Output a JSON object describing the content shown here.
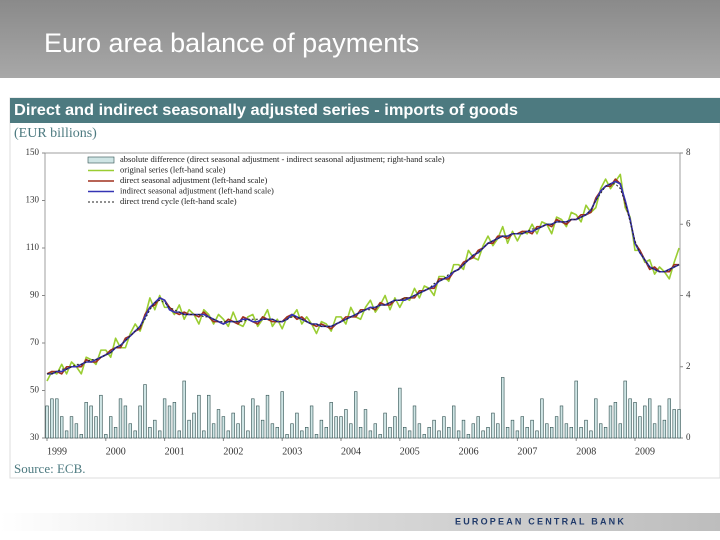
{
  "slide_title": "Euro area balance of payments",
  "footer": "EUROPEAN CENTRAL BANK",
  "chart_data": {
    "type": "line",
    "title": "Direct and indirect seasonally adjusted series - imports of goods",
    "subtitle": "(EUR billions)",
    "source": "Source: ECB.",
    "categories": [
      "1999",
      null,
      null,
      null,
      null,
      null,
      null,
      null,
      null,
      null,
      null,
      null,
      "2000",
      null,
      null,
      null,
      null,
      null,
      null,
      null,
      null,
      null,
      null,
      null,
      "2001",
      null,
      null,
      null,
      null,
      null,
      null,
      null,
      null,
      null,
      null,
      null,
      "2002",
      null,
      null,
      null,
      null,
      null,
      null,
      null,
      null,
      null,
      null,
      null,
      "2003",
      null,
      null,
      null,
      null,
      null,
      null,
      null,
      null,
      null,
      null,
      null,
      "2004",
      null,
      null,
      null,
      null,
      null,
      null,
      null,
      null,
      null,
      null,
      null,
      "2005",
      null,
      null,
      null,
      null,
      null,
      null,
      null,
      null,
      null,
      null,
      null,
      "2006",
      null,
      null,
      null,
      null,
      null,
      null,
      null,
      null,
      null,
      null,
      null,
      "2007",
      null,
      null,
      null,
      null,
      null,
      null,
      null,
      null,
      null,
      null,
      null,
      "2008",
      null,
      null,
      null,
      null,
      null,
      null,
      null,
      null,
      null,
      null,
      null,
      "2009",
      null,
      null,
      null,
      null,
      null,
      null,
      null,
      null,
      null
    ],
    "ylim": [
      30,
      150
    ],
    "yticks": [
      30,
      50,
      70,
      90,
      110,
      130,
      150
    ],
    "y2lim": [
      0,
      8
    ],
    "y2ticks": [
      0,
      2,
      4,
      6,
      8
    ],
    "grid": false,
    "legend": "top-left",
    "series": [
      {
        "name": "absolute difference (direct seasonal adjustment - indirect seasonal adjustment; right-hand scale)",
        "type": "bar",
        "axis": "y2",
        "color": "#cfe5e5",
        "values": [
          0.9,
          1.1,
          1.1,
          0.6,
          0.2,
          0.6,
          0.4,
          0.1,
          1.0,
          0.9,
          0.6,
          1.2,
          0.1,
          0.6,
          0.3,
          1.1,
          0.9,
          0.4,
          0.2,
          0.9,
          1.5,
          0.3,
          0.5,
          0.2,
          1.1,
          0.9,
          1.0,
          0.2,
          1.6,
          0.5,
          0.7,
          1.2,
          0.2,
          1.2,
          0.4,
          0.8,
          0.6,
          0.2,
          0.7,
          0.4,
          0.9,
          0.2,
          1.1,
          0.9,
          0.5,
          1.2,
          0.4,
          0.3,
          1.3,
          0.1,
          0.4,
          0.7,
          0.2,
          0.3,
          0.9,
          0.1,
          0.5,
          0.3,
          1.0,
          0.6,
          0.6,
          0.8,
          0.4,
          1.3,
          0.3,
          0.8,
          0.2,
          0.4,
          0.1,
          0.7,
          0.3,
          0.6,
          1.4,
          0.3,
          0.2,
          0.9,
          0.4,
          0.1,
          0.3,
          0.5,
          0.2,
          0.6,
          0.3,
          0.9,
          0.2,
          0.5,
          0.1,
          0.4,
          0.6,
          0.2,
          0.3,
          0.7,
          0.4,
          1.7,
          0.3,
          0.5,
          0.2,
          0.6,
          0.3,
          0.5,
          0.2,
          1.1,
          0.4,
          0.3,
          0.6,
          0.9,
          0.4,
          0.3,
          1.6,
          0.3,
          0.5,
          0.2,
          1.1,
          0.4,
          0.3,
          0.9,
          1.0,
          0.4,
          1.6,
          1.1,
          1.0,
          0.6,
          0.9,
          1.1,
          0.4,
          0.9,
          0.5,
          1.1,
          0.8,
          0.8
        ]
      },
      {
        "name": "original series (left-hand scale)",
        "color": "#9acd32",
        "values": [
          54,
          58,
          57,
          61,
          57,
          62,
          60,
          57,
          64,
          63,
          61,
          67,
          67,
          64,
          72,
          68,
          68,
          74,
          78,
          75,
          81,
          89,
          84,
          90,
          85,
          85,
          82,
          86,
          80,
          84,
          82,
          78,
          84,
          82,
          78,
          82,
          80,
          77,
          83,
          78,
          77,
          81,
          82,
          77,
          80,
          84,
          77,
          80,
          76,
          81,
          81,
          84,
          78,
          81,
          78,
          74,
          79,
          78,
          75,
          81,
          81,
          78,
          85,
          81,
          80,
          85,
          88,
          83,
          86,
          90,
          84,
          89,
          85,
          89,
          88,
          93,
          89,
          94,
          93,
          90,
          98,
          98,
          96,
          103,
          103,
          101,
          109,
          106,
          105,
          111,
          115,
          111,
          114,
          119,
          112,
          117,
          113,
          117,
          116,
          120,
          116,
          121,
          120,
          116,
          123,
          122,
          119,
          125,
          124,
          121,
          128,
          125,
          127,
          135,
          139,
          135,
          138,
          141,
          127,
          123,
          109,
          109,
          104,
          105,
          99,
          102,
          100,
          97,
          104,
          110
        ]
      },
      {
        "name": "direct seasonal adjustment (left-hand scale)",
        "color": "#a0301e",
        "values": [
          57,
          58,
          58,
          57,
          60,
          60,
          60,
          60,
          63,
          62,
          62,
          64,
          65,
          67,
          68,
          68,
          72,
          73,
          75,
          76,
          82,
          85,
          86,
          89,
          88,
          85,
          83,
          82,
          83,
          82,
          82,
          81,
          83,
          81,
          79,
          79,
          78,
          80,
          79,
          78,
          81,
          80,
          79,
          78,
          81,
          80,
          79,
          79,
          79,
          81,
          82,
          80,
          81,
          79,
          78,
          77,
          78,
          77,
          76,
          78,
          79,
          81,
          81,
          81,
          84,
          84,
          85,
          84,
          87,
          86,
          86,
          88,
          88,
          89,
          89,
          89,
          92,
          92,
          93,
          93,
          97,
          97,
          97,
          100,
          101,
          104,
          105,
          106,
          109,
          110,
          112,
          112,
          115,
          115,
          114,
          116,
          116,
          117,
          117,
          116,
          119,
          119,
          120,
          119,
          122,
          121,
          120,
          122,
          122,
          124,
          124,
          125,
          131,
          134,
          136,
          136,
          139,
          137,
          129,
          122,
          112,
          109,
          105,
          101,
          102,
          100,
          100,
          100,
          103,
          103
        ]
      },
      {
        "name": "indirect seasonal adjustment (left-hand scale)",
        "color": "#3434b4",
        "values": [
          57,
          57,
          58,
          58,
          59,
          60,
          60,
          61,
          62,
          62,
          63,
          64,
          65,
          66,
          68,
          69,
          71,
          73,
          75,
          77,
          81,
          85,
          87,
          89,
          88,
          84,
          83,
          83,
          82,
          82,
          82,
          82,
          82,
          81,
          80,
          79,
          78,
          79,
          79,
          79,
          80,
          80,
          79,
          79,
          80,
          80,
          80,
          79,
          79,
          80,
          82,
          81,
          80,
          79,
          78,
          78,
          77,
          77,
          77,
          78,
          79,
          80,
          81,
          82,
          83,
          84,
          85,
          85,
          86,
          86,
          87,
          88,
          88,
          88,
          89,
          90,
          91,
          92,
          93,
          94,
          96,
          97,
          98,
          100,
          101,
          103,
          105,
          107,
          108,
          110,
          112,
          113,
          114,
          115,
          115,
          116,
          116,
          116,
          117,
          117,
          118,
          119,
          120,
          120,
          121,
          121,
          121,
          122,
          122,
          123,
          124,
          126,
          130,
          134,
          136,
          137,
          138,
          137,
          130,
          122,
          112,
          108,
          105,
          102,
          101,
          100,
          100,
          101,
          102,
          103
        ]
      },
      {
        "name": "direct trend cycle  (left-hand scale)",
        "color": "#222222",
        "dash": true,
        "values": [
          57,
          57,
          58,
          59,
          59,
          60,
          61,
          61,
          62,
          63,
          63,
          64,
          65,
          66,
          68,
          69,
          71,
          73,
          75,
          77,
          80,
          84,
          87,
          88,
          87,
          85,
          84,
          83,
          82,
          82,
          82,
          82,
          81,
          81,
          80,
          79,
          79,
          79,
          79,
          79,
          79,
          80,
          80,
          80,
          80,
          80,
          80,
          79,
          79,
          80,
          81,
          81,
          80,
          79,
          78,
          78,
          77,
          77,
          77,
          78,
          79,
          80,
          81,
          82,
          83,
          84,
          84,
          85,
          86,
          86,
          87,
          88,
          88,
          89,
          89,
          90,
          91,
          92,
          93,
          95,
          96,
          97,
          99,
          100,
          101,
          103,
          105,
          107,
          108,
          110,
          112,
          113,
          114,
          115,
          115,
          116,
          116,
          116,
          117,
          118,
          118,
          119,
          120,
          120,
          121,
          121,
          121,
          122,
          122,
          123,
          124,
          126,
          130,
          133,
          136,
          137,
          137,
          135,
          129,
          121,
          113,
          108,
          105,
          102,
          101,
          100,
          100,
          101,
          102,
          103
        ]
      }
    ]
  }
}
